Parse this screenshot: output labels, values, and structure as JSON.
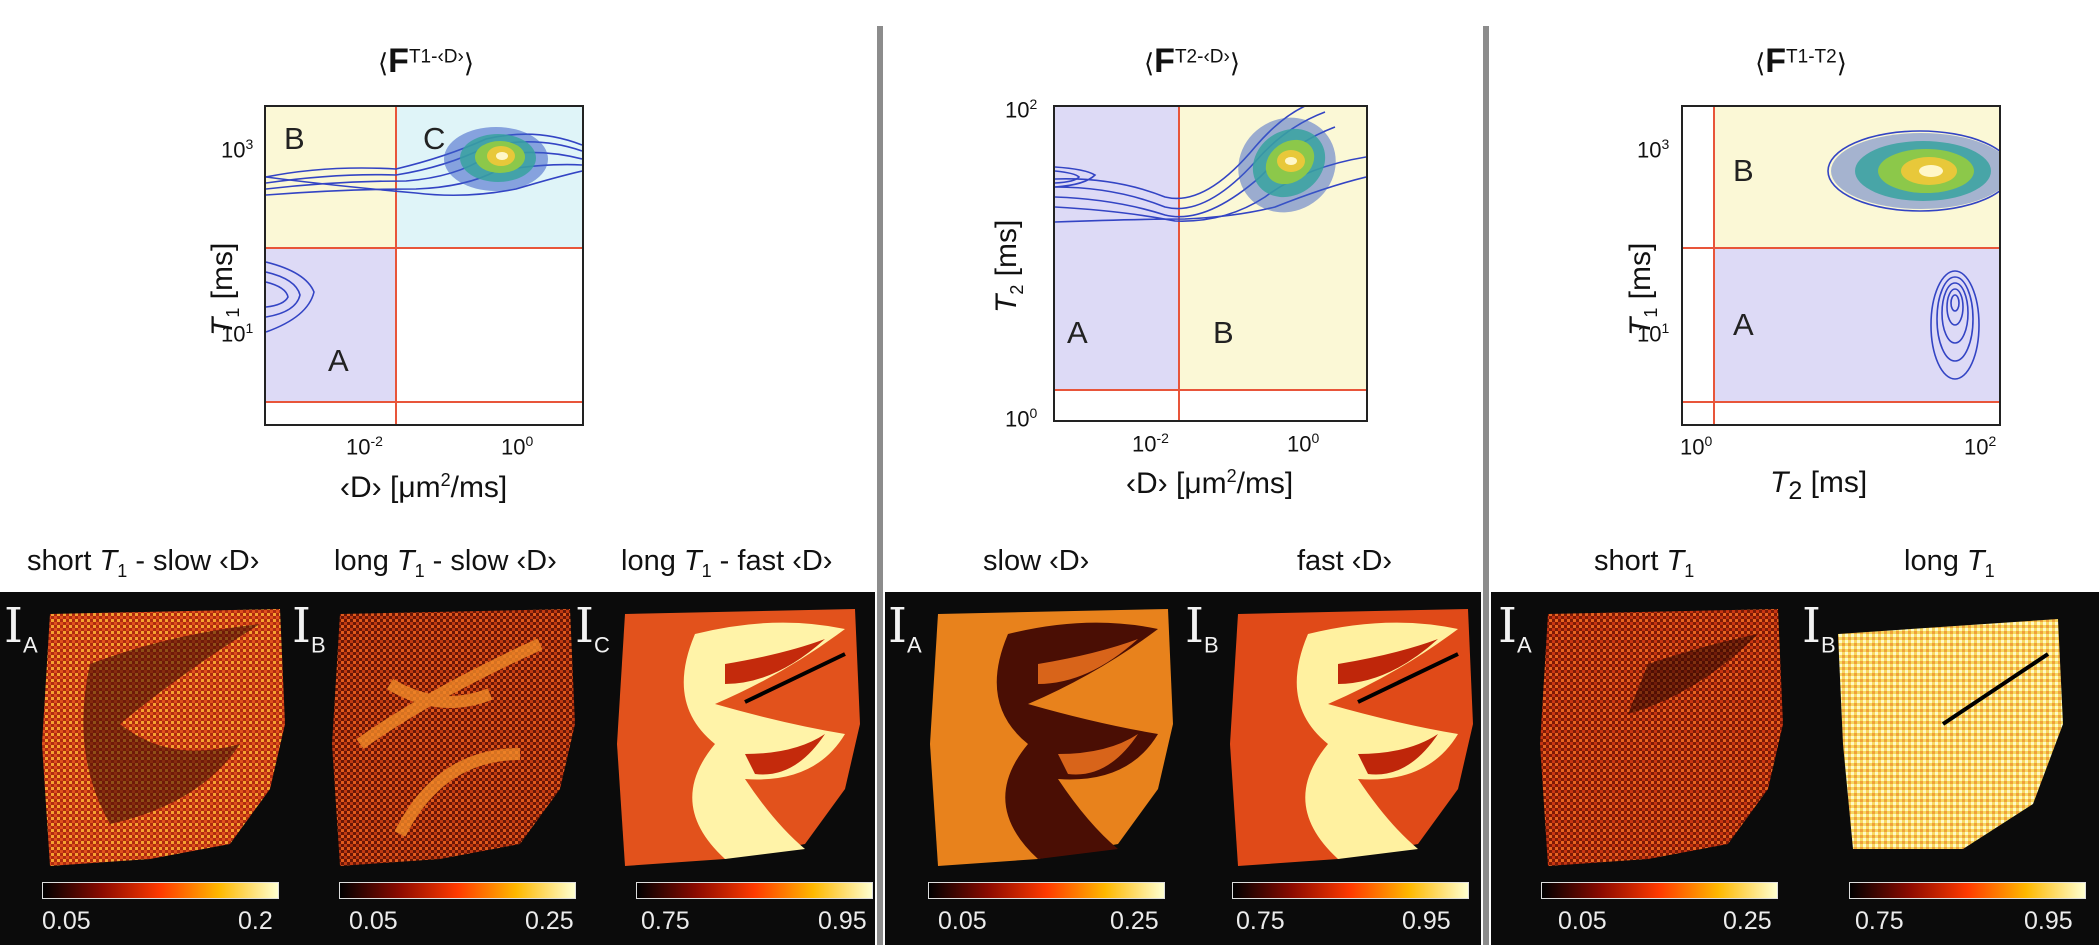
{
  "colors": {
    "region_yellow": "#fbf8d6",
    "region_cyan": "#dff4f8",
    "region_purple": "#dddaf6",
    "divider": "#e8553a",
    "contour": "#3344c4",
    "separator": "#8c8c8c"
  },
  "panels": [
    {
      "title_bold": "F",
      "title_sup": "T1-‹D›",
      "regions": [
        "B",
        "C",
        "A"
      ],
      "y_ticks": [
        {
          "base": "10",
          "exp": "3"
        },
        {
          "base": "10",
          "exp": "1"
        }
      ],
      "x_ticks": [
        {
          "base": "10",
          "exp": "-2"
        },
        {
          "base": "10",
          "exp": "0"
        }
      ],
      "y_label_main": "T",
      "y_label_sub": "1",
      "y_label_unit": " [ms]",
      "x_label_pre": "‹D› [μm",
      "x_label_sup": "2",
      "x_label_post": "/ms]",
      "maps": [
        {
          "heading_a": "short ",
          "heading_var": "T",
          "heading_sub": "1",
          "heading_b": " - slow ‹D›",
          "index": "I",
          "index_sub": "A",
          "cb_min": "0.05",
          "cb_max": "0.2",
          "cb_type": "hot"
        },
        {
          "heading_a": "long ",
          "heading_var": "T",
          "heading_sub": "1",
          "heading_b": " - slow ‹D›",
          "index": "I",
          "index_sub": "B",
          "cb_min": "0.05",
          "cb_max": "0.25",
          "cb_type": "hot"
        },
        {
          "heading_a": "long ",
          "heading_var": "T",
          "heading_sub": "1",
          "heading_b": " - fast ‹D›",
          "index": "I",
          "index_sub": "C",
          "cb_min": "0.75",
          "cb_max": "0.95",
          "cb_type": "hot"
        }
      ]
    },
    {
      "title_bold": "F",
      "title_sup": "T2-‹D›",
      "regions": [
        "A",
        "B"
      ],
      "y_ticks": [
        {
          "base": "10",
          "exp": "2"
        },
        {
          "base": "10",
          "exp": "0"
        }
      ],
      "x_ticks": [
        {
          "base": "10",
          "exp": "-2"
        },
        {
          "base": "10",
          "exp": "0"
        }
      ],
      "y_label_main": "T",
      "y_label_sub": "2",
      "y_label_unit": " [ms]",
      "x_label_pre": "‹D› [μm",
      "x_label_sup": "2",
      "x_label_post": "/ms]",
      "maps": [
        {
          "heading_a": "slow ‹D›",
          "index": "I",
          "index_sub": "A",
          "cb_min": "0.05",
          "cb_max": "0.25"
        },
        {
          "heading_a": "fast ‹D›",
          "index": "I",
          "index_sub": "B",
          "cb_min": "0.75",
          "cb_max": "0.95"
        }
      ]
    },
    {
      "title_bold": "F",
      "title_sup": "T1-T2",
      "regions": [
        "B",
        "A"
      ],
      "y_ticks": [
        {
          "base": "10",
          "exp": "3"
        },
        {
          "base": "10",
          "exp": "1"
        }
      ],
      "x_ticks": [
        {
          "base": "10",
          "exp": "0"
        },
        {
          "base": "10",
          "exp": "2"
        }
      ],
      "y_label_main": "T",
      "y_label_sub": "1",
      "y_label_unit": " [ms]",
      "x_label_main": "T",
      "x_label_sub": "2",
      "x_label_unit": " [ms]",
      "maps": [
        {
          "heading_a": "short ",
          "heading_var": "T",
          "heading_sub": "1",
          "index": "I",
          "index_sub": "A",
          "cb_min": "0.05",
          "cb_max": "0.25"
        },
        {
          "heading_a": "long ",
          "heading_var": "T",
          "heading_sub": "1",
          "index": "I",
          "index_sub": "B",
          "cb_min": "0.75",
          "cb_max": "0.95"
        }
      ]
    }
  ]
}
